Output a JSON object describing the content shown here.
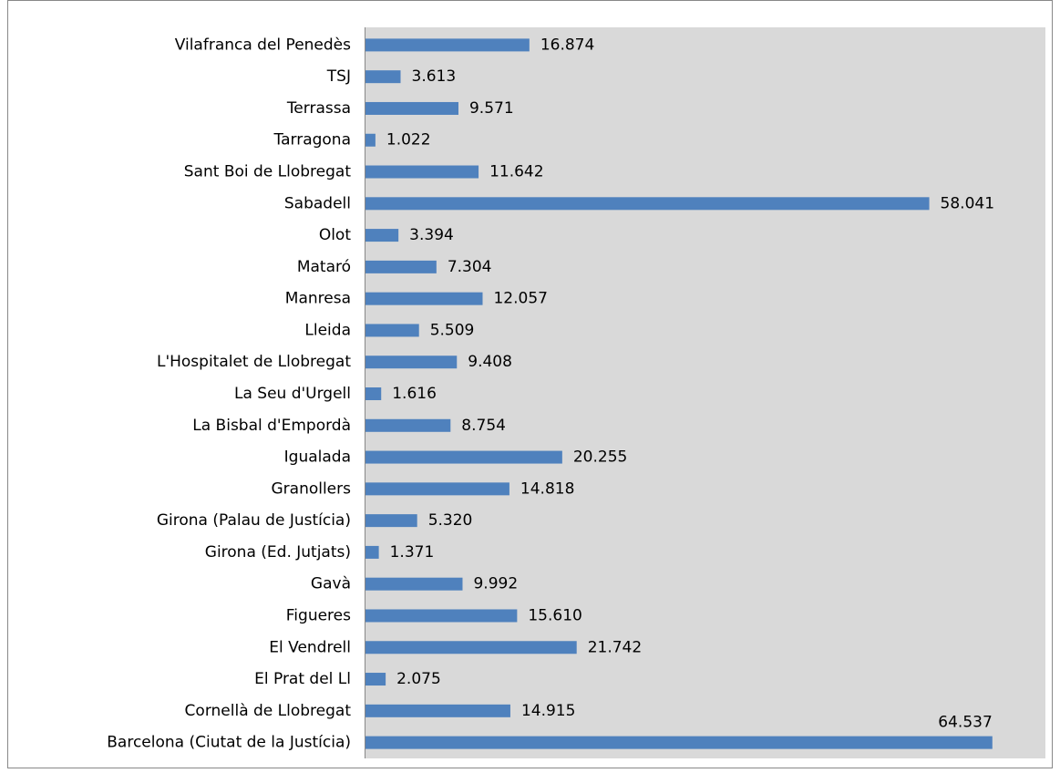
{
  "chart_data": {
    "type": "bar",
    "orientation": "horizontal",
    "color": "#4f81bd",
    "categories": [
      "Vilafranca del Penedès",
      "TSJ",
      "Terrassa",
      "Tarragona",
      "Sant Boi de Llobregat",
      "Sabadell",
      "Olot",
      "Mataró",
      "Manresa",
      "Lleida",
      "L'Hospitalet de Llobregat",
      "La Seu d'Urgell",
      "La Bisbal d'Empordà",
      "Igualada",
      "Granollers",
      "Girona (Palau de Justícia)",
      "Girona (Ed. Jutjats)",
      "Gavà",
      "Figueres",
      "El Vendrell",
      "El Prat del Ll",
      "Cornellà de Llobregat",
      "Barcelona (Ciutat de la Justícia)"
    ],
    "values": [
      16874,
      3613,
      9571,
      1022,
      11642,
      58041,
      3394,
      7304,
      12057,
      5509,
      9408,
      1616,
      8754,
      20255,
      14818,
      5320,
      1371,
      9992,
      15610,
      21742,
      2075,
      14915,
      64537
    ],
    "value_labels": [
      "16.874",
      "3.613",
      "9.571",
      "1.022",
      "11.642",
      "58.041",
      "3.394",
      "7.304",
      "12.057",
      "5.509",
      "9.408",
      "1.616",
      "8.754",
      "20.255",
      "14.818",
      "5.320",
      "1.371",
      "9.992",
      "15.610",
      "21.742",
      "2.075",
      "14.915",
      "64.537"
    ],
    "xlim": [
      0,
      70000
    ]
  }
}
